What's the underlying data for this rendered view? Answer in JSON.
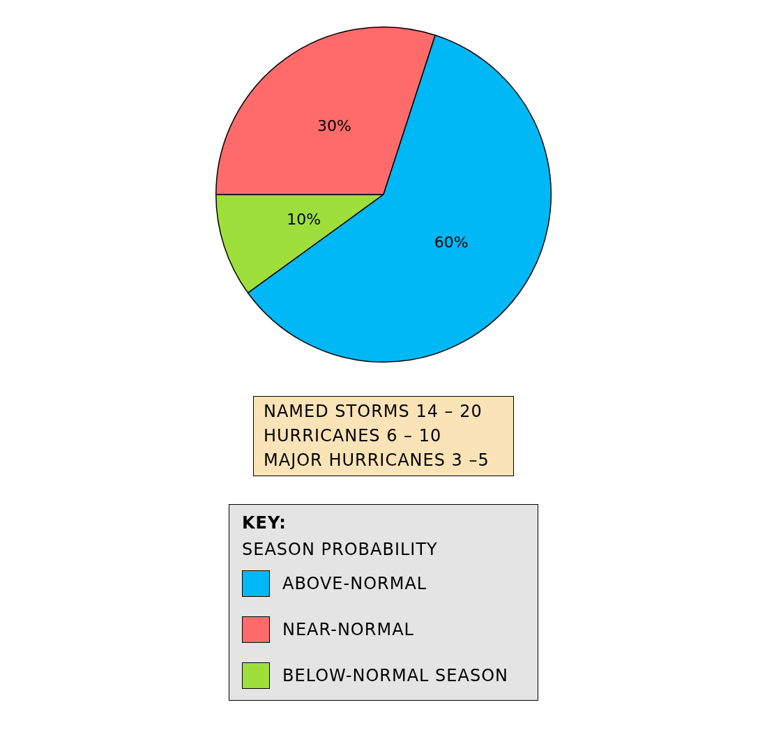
{
  "chart_data": {
    "type": "pie",
    "categories": [
      "ABOVE-NORMAL",
      "NEAR-NORMAL",
      "BELOW-NORMAL SEASON"
    ],
    "values": [
      60,
      30,
      10
    ],
    "colors": [
      "#00b8f5",
      "#ff6b6b",
      "#9edf3c"
    ],
    "value_labels": [
      "60%",
      "30%",
      "10%"
    ],
    "legend": "bottom",
    "legend_title": "KEY:",
    "subtitle": "SEASON PROBABILITY",
    "annotations": [
      "NAMED STORMS 14 – 20",
      "HURRICANES 6 – 10",
      "MAJOR HURRICANES 3 –5"
    ]
  }
}
